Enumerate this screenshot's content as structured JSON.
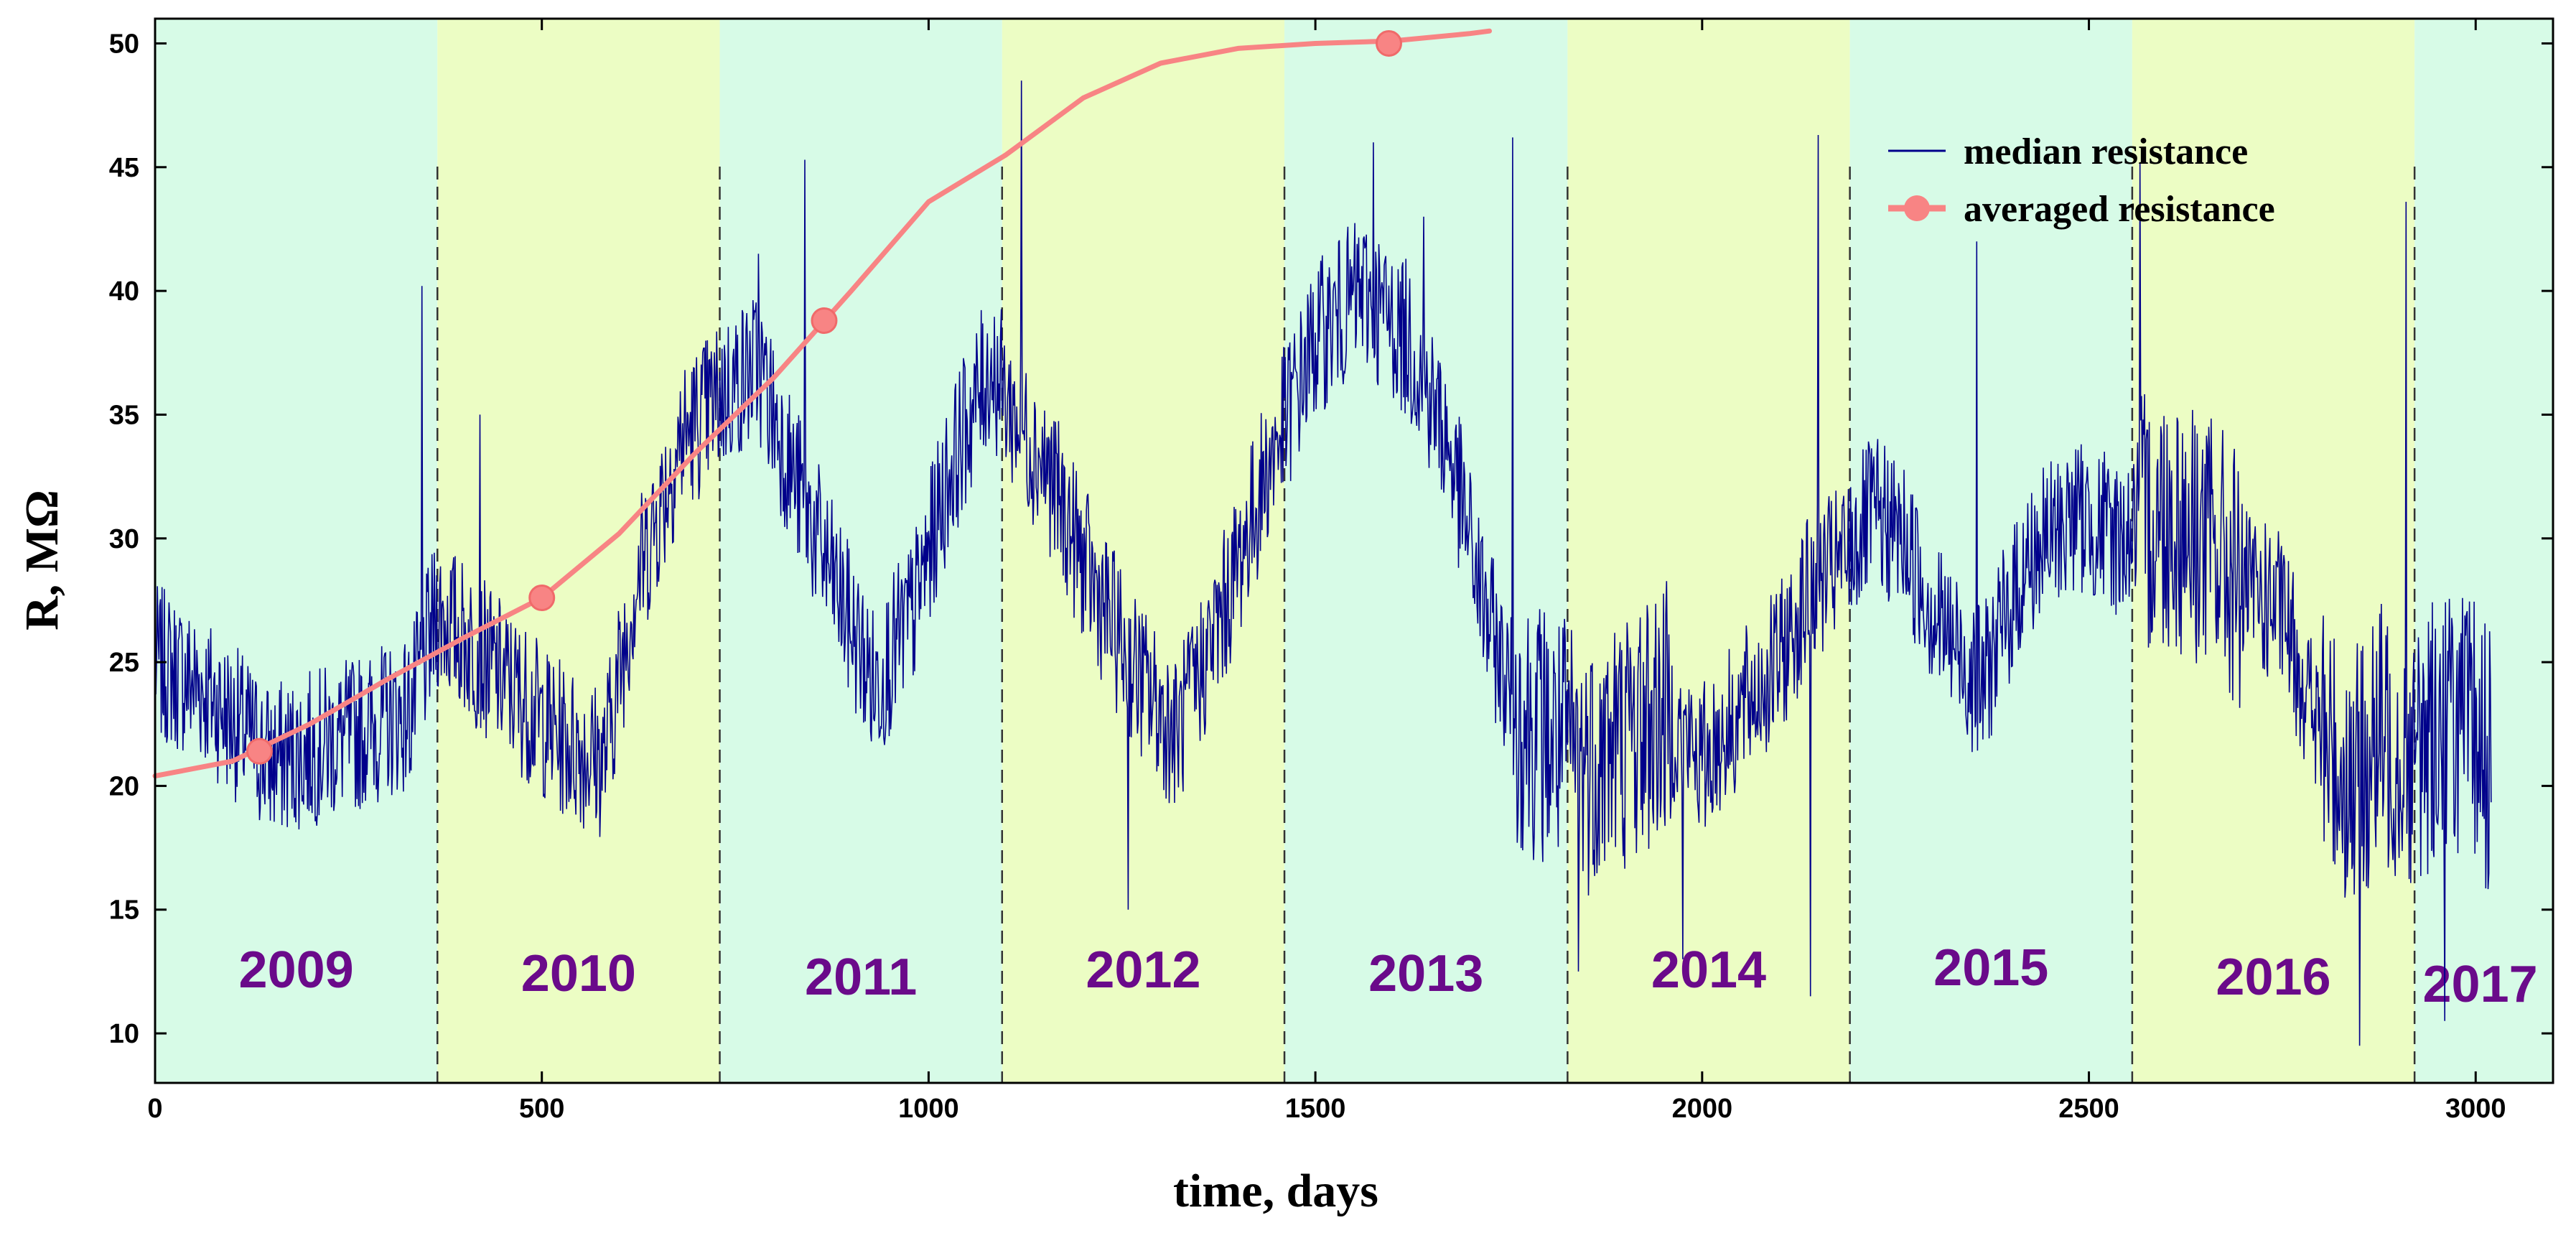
{
  "chart_data": {
    "type": "line",
    "title": "",
    "xlabel": "time, days",
    "ylabel": "R, MΩ",
    "xlim": [
      0,
      3100
    ],
    "ylim": [
      8,
      51
    ],
    "grid": false,
    "x_ticks": [
      0,
      500,
      1000,
      1500,
      2000,
      2500,
      3000
    ],
    "y_ticks": [
      10,
      15,
      20,
      25,
      30,
      35,
      40,
      45,
      50
    ],
    "legend_position": "top-right",
    "colors": {
      "median": "#00008b",
      "averaged": "#f88484",
      "band_a": "#d7fbe7",
      "band_b": "#ecfdc4",
      "year_label": "#6a0a8a",
      "divider": "#333333"
    },
    "year_bands": [
      {
        "label": "2009",
        "start": 0,
        "end": 365
      },
      {
        "label": "2010",
        "start": 365,
        "end": 730
      },
      {
        "label": "2011",
        "start": 730,
        "end": 1095
      },
      {
        "label": "2012",
        "start": 1095,
        "end": 1460
      },
      {
        "label": "2013",
        "start": 1460,
        "end": 1826
      },
      {
        "label": "2014",
        "start": 1826,
        "end": 2191
      },
      {
        "label": "2015",
        "start": 2191,
        "end": 2556
      },
      {
        "label": "2016",
        "start": 2556,
        "end": 2921
      },
      {
        "label": "2017",
        "start": 2921,
        "end": 3100
      }
    ],
    "series": [
      {
        "name": "median resistance",
        "style": "thin-line",
        "noise_seed": 7,
        "trend_x": [
          0,
          60,
          150,
          250,
          330,
          365,
          400,
          460,
          520,
          580,
          620,
          680,
          740,
          780,
          820,
          880,
          930,
          980,
          1030,
          1080,
          1110,
          1150,
          1200,
          1260,
          1320,
          1380,
          1440,
          1500,
          1560,
          1620,
          1670,
          1720,
          1760,
          1800,
          1850,
          1900,
          1950,
          2000,
          2050,
          2100,
          2140,
          2180,
          2220,
          2260,
          2300,
          2360,
          2420,
          2480,
          2540,
          2600,
          2650,
          2700,
          2750,
          2800,
          2840,
          2880,
          2920,
          2960,
          3000,
          3020
        ],
        "trend_y": [
          25,
          24,
          21,
          22,
          23,
          27,
          26,
          24,
          22,
          21,
          28,
          34,
          36,
          37,
          33,
          28,
          24,
          27,
          33,
          37,
          35,
          33,
          29,
          25,
          22,
          27,
          33,
          38,
          40,
          38,
          34,
          27,
          23,
          22,
          21,
          22,
          23,
          21,
          23,
          25,
          28,
          29,
          31,
          30,
          27,
          24,
          29,
          31,
          30,
          31,
          30,
          28,
          27,
          22,
          20,
          22,
          21,
          23,
          22,
          21
        ],
        "spikes": [
          {
            "x": 345,
            "y": 40.2
          },
          {
            "x": 420,
            "y": 35
          },
          {
            "x": 780,
            "y": 41.5
          },
          {
            "x": 840,
            "y": 45.3
          },
          {
            "x": 1120,
            "y": 48.5
          },
          {
            "x": 1258,
            "y": 15
          },
          {
            "x": 1575,
            "y": 46
          },
          {
            "x": 1640,
            "y": 43
          },
          {
            "x": 1755,
            "y": 46.2
          },
          {
            "x": 1840,
            "y": 12.5
          },
          {
            "x": 1975,
            "y": 13
          },
          {
            "x": 2140,
            "y": 11.5
          },
          {
            "x": 2150,
            "y": 46.3
          },
          {
            "x": 2355,
            "y": 42
          },
          {
            "x": 2566,
            "y": 45.2
          },
          {
            "x": 2850,
            "y": 9.5
          },
          {
            "x": 2910,
            "y": 43.6
          },
          {
            "x": 2960,
            "y": 10.5
          }
        ]
      },
      {
        "name": "averaged resistance",
        "style": "thick-line-with-markers",
        "curve_x": [
          0,
          100,
          200,
          300,
          400,
          500,
          600,
          700,
          800,
          900,
          1000,
          1100,
          1200,
          1300,
          1400,
          1500,
          1600,
          1700,
          1725
        ],
        "curve_y": [
          20.4,
          21.0,
          22.5,
          24.3,
          26.0,
          27.6,
          30.2,
          33.5,
          36.5,
          40.0,
          43.6,
          45.5,
          47.8,
          49.2,
          49.8,
          50.0,
          50.1,
          50.4,
          50.5
        ],
        "markers_x": [
          135,
          500,
          865,
          1595
        ],
        "markers_y": [
          21.4,
          27.6,
          38.8,
          50.0
        ]
      }
    ]
  }
}
